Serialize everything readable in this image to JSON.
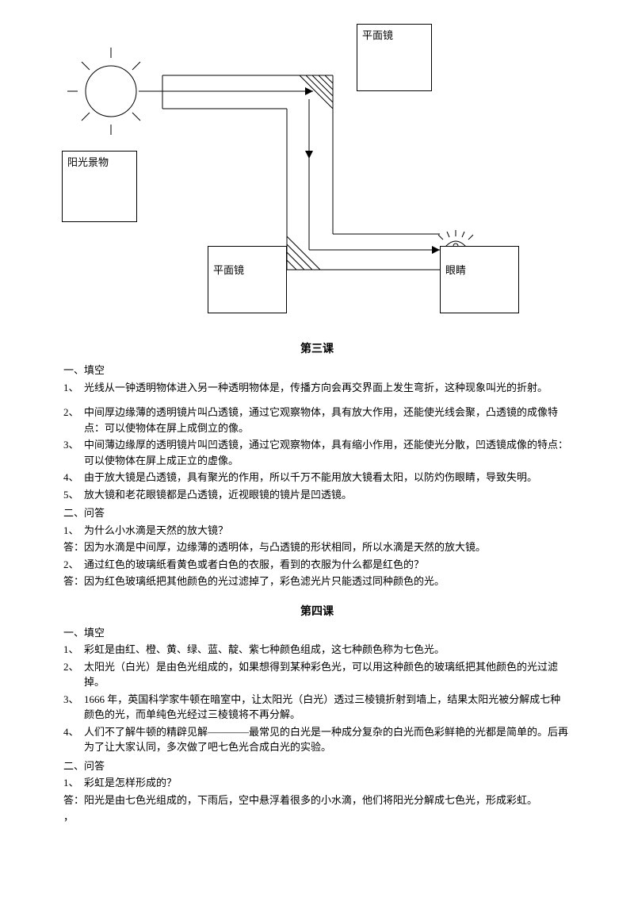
{
  "diagram": {
    "sun_label": "",
    "box_top_right": "平面镜",
    "box_left": "阳光景物",
    "box_bottom_mid": "平面镜",
    "box_bottom_right": "眼睛"
  },
  "lesson3": {
    "title": "第三课",
    "sec1_head": "一、填空",
    "fill": [
      {
        "n": "1、",
        "t": "光线从一钟透明物体进入另一种透明物体是，传播方向会再交界面上发生弯折，这种现象叫光的折射。"
      },
      {
        "n": "2、",
        "t": "中间厚边缘薄的透明镜片叫凸透镜，通过它观察物体，具有放大作用，还能使光线会聚，凸透镜的成像特点：可以使物体在屏上成倒立的像。"
      },
      {
        "n": "3、",
        "t": "中间薄边缘厚的透明镜片叫凹透镜，通过它观察物体，具有缩小作用，还能使光分散，凹透镜成像的特点：可以使物体在屏上成正立的虚像。"
      },
      {
        "n": "4、",
        "t": "由于放大镜是凸透镜，具有聚光的作用，所以千万不能用放大镜看太阳，以防灼伤眼睛，导致失明。"
      },
      {
        "n": "5、",
        "t": "放大镜和老花眼镜都是凸透镜，近视眼镜的镜片是凹透镜。"
      }
    ],
    "sec2_head": "二、问答",
    "qa": [
      {
        "q_n": "1、",
        "q": "为什么小水滴是天然的放大镜？",
        "a_label": "答：",
        "a": "因为水滴是中间厚，边缘薄的透明体，与凸透镜的形状相同，所以水滴是天然的放大镜。"
      },
      {
        "q_n": "2、",
        "q": "通过红色的玻璃纸看黄色或者白色的衣服，看到的衣服为什么都是红色的？",
        "a_label": "答：",
        "a": "因为红色玻璃纸把其他颜色的光过滤掉了，彩色滤光片只能透过同种颜色的光。"
      }
    ]
  },
  "lesson4": {
    "title": "第四课",
    "sec1_head": "一、填空",
    "fill": [
      {
        "n": "1、",
        "t": "彩虹是由红、橙、黄、绿、蓝、靛、紫七种颜色组成，这七种颜色称为七色光。"
      },
      {
        "n": "2、",
        "t": "太阳光（白光）是由色光组成的，如果想得到某种彩色光，可以用这种颜色的玻璃纸把其他颜色的光过滤掉。"
      },
      {
        "n": "3、",
        "t": "1666 年，英国科学家牛顿在暗室中，让太阳光（白光）透过三棱镜折射到墙上，结果太阳光被分解成七种颜色的光，而单纯色光经过三棱镜将不再分解。"
      },
      {
        "n": "4、",
        "t": "人们不了解牛顿的精辟见解————最常见的白光是一种成分复杂的白光而色彩鲜艳的光都是简单的。后再为了让大家认同，多次做了吧七色光合成白光的实验。"
      }
    ],
    "sec2_head": "二、问答",
    "qa": [
      {
        "q_n": "1、",
        "q": "彩虹是怎样形成的？",
        "a_label": "答：",
        "a": "阳光是由七色光组成的，下雨后，空中悬浮着很多的小水滴，他们将阳光分解成七色光，形成彩虹。"
      }
    ],
    "trailing": "，"
  },
  "colors": {
    "stroke": "#000000",
    "bg": "#ffffff"
  }
}
